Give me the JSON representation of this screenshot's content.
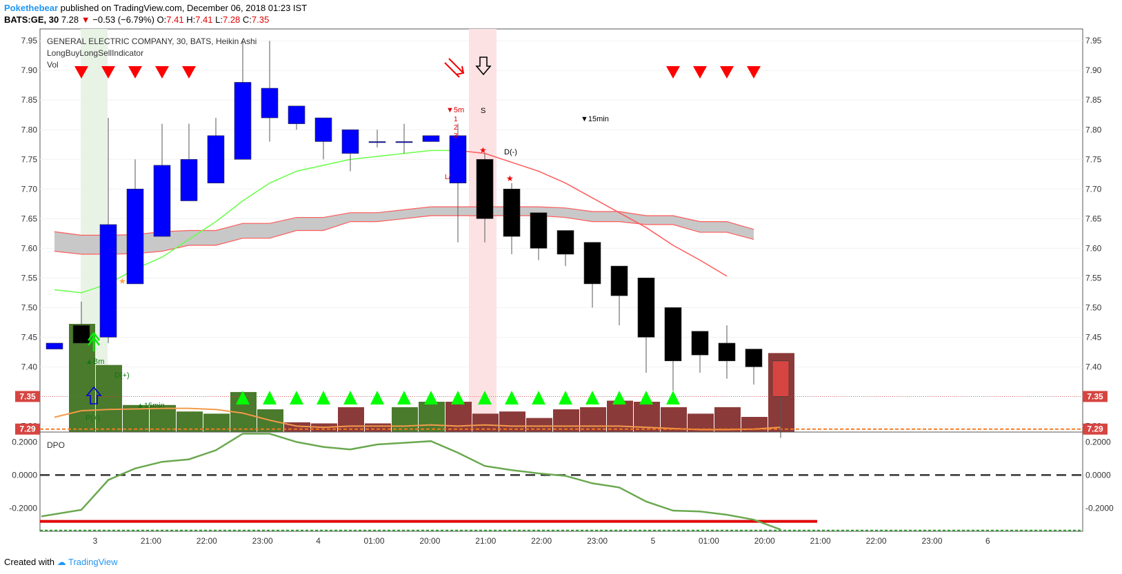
{
  "header": {
    "author": "Pokethebear",
    "published": "published on TradingView.com, December 06, 2018 01:23 IST",
    "symbol": "BATS:GE, 30",
    "last": "7.28",
    "change_arrow": "▼",
    "change": "−0.53 (−6.79%)",
    "o_label": "O:",
    "o_val": "7.41",
    "h_label": "H:",
    "h_val": "7.41",
    "l_label": "L:",
    "l_val": "7.28",
    "c_label": "C:",
    "c_val": "7.35"
  },
  "legend": {
    "title": "GENERAL ELECTRIC COMPANY, 30, BATS, Heikin Ashi",
    "indicator": "LongBuyLongSellIndicator",
    "vol": "Vol",
    "dpo": "DPO"
  },
  "footer": {
    "created": "Created with",
    "brand": "TradingView"
  },
  "colors": {
    "bull_candle": "#0000ff",
    "bear_candle": "#000000",
    "vol_green": "#4a7a2c",
    "vol_red": "#8b3a3a",
    "ema_green": "#66ff44",
    "ema_red": "#ff5a5a",
    "band_fill": "#c8c8c8",
    "dpo_line": "#6aa84f",
    "price_tag": "#d64541",
    "sell_arrow": "#ff0000",
    "buy_arrow": "#00ff00"
  },
  "chart_data": {
    "type": "candlestick",
    "price_axis": {
      "ylim": [
        7.29,
        7.97
      ],
      "ticks": [
        "7.95",
        "7.90",
        "7.85",
        "7.80",
        "7.75",
        "7.70",
        "7.65",
        "7.60",
        "7.55",
        "7.50",
        "7.45",
        "7.40",
        "7.35",
        "7.30"
      ]
    },
    "time_axis_labels": [
      "3",
      "21:00",
      "22:00",
      "23:00",
      "4",
      "01:00",
      "20:00",
      "21:00",
      "22:00",
      "23:00",
      "5",
      "01:00",
      "20:00",
      "21:00",
      "22:00",
      "23:00",
      "6"
    ],
    "candles": [
      {
        "o": 7.43,
        "h": 7.44,
        "l": 7.43,
        "c": 7.44
      },
      {
        "o": 7.47,
        "h": 7.51,
        "l": 7.44,
        "c": 7.44
      },
      {
        "o": 7.45,
        "h": 7.82,
        "l": 7.44,
        "c": 7.64
      },
      {
        "o": 7.54,
        "h": 7.75,
        "l": 7.54,
        "c": 7.7
      },
      {
        "o": 7.62,
        "h": 7.81,
        "l": 7.62,
        "c": 7.74
      },
      {
        "o": 7.68,
        "h": 7.81,
        "l": 7.68,
        "c": 7.75
      },
      {
        "o": 7.71,
        "h": 7.82,
        "l": 7.71,
        "c": 7.79
      },
      {
        "o": 7.75,
        "h": 7.95,
        "l": 7.75,
        "c": 7.88
      },
      {
        "o": 7.82,
        "h": 7.95,
        "l": 7.78,
        "c": 7.87
      },
      {
        "o": 7.81,
        "h": 7.84,
        "l": 7.8,
        "c": 7.84
      },
      {
        "o": 7.78,
        "h": 7.82,
        "l": 7.75,
        "c": 7.82
      },
      {
        "o": 7.76,
        "h": 7.8,
        "l": 7.73,
        "c": 7.8
      },
      {
        "o": 7.78,
        "h": 7.8,
        "l": 7.77,
        "c": 7.78
      },
      {
        "o": 7.78,
        "h": 7.81,
        "l": 7.76,
        "c": 7.78
      },
      {
        "o": 7.78,
        "h": 7.79,
        "l": 7.78,
        "c": 7.79
      },
      {
        "o": 7.71,
        "h": 7.81,
        "l": 7.61,
        "c": 7.79
      },
      {
        "o": 7.75,
        "h": 7.76,
        "l": 7.61,
        "c": 7.65
      },
      {
        "o": 7.7,
        "h": 7.71,
        "l": 7.59,
        "c": 7.62
      },
      {
        "o": 7.66,
        "h": 7.66,
        "l": 7.58,
        "c": 7.6
      },
      {
        "o": 7.63,
        "h": 7.63,
        "l": 7.57,
        "c": 7.59
      },
      {
        "o": 7.61,
        "h": 7.61,
        "l": 7.5,
        "c": 7.54
      },
      {
        "o": 7.57,
        "h": 7.57,
        "l": 7.47,
        "c": 7.52
      },
      {
        "o": 7.55,
        "h": 7.55,
        "l": 7.39,
        "c": 7.45
      },
      {
        "o": 7.5,
        "h": 7.5,
        "l": 7.36,
        "c": 7.41
      },
      {
        "o": 7.46,
        "h": 7.46,
        "l": 7.39,
        "c": 7.42
      },
      {
        "o": 7.44,
        "h": 7.47,
        "l": 7.38,
        "c": 7.41
      },
      {
        "o": 7.43,
        "h": 7.43,
        "l": 7.37,
        "c": 7.4
      },
      {
        "o": 7.41,
        "h": 7.41,
        "l": 7.28,
        "c": 7.35
      }
    ],
    "volume": [
      0.0,
      1.0,
      0.62,
      0.25,
      0.25,
      0.19,
      0.17,
      0.37,
      0.21,
      0.09,
      0.08,
      0.23,
      0.08,
      0.23,
      0.28,
      0.28,
      0.17,
      0.19,
      0.13,
      0.21,
      0.23,
      0.29,
      0.28,
      0.23,
      0.17,
      0.23,
      0.14,
      0.73
    ],
    "volume_colors": [
      "g",
      "g",
      "g",
      "g",
      "g",
      "g",
      "g",
      "g",
      "g",
      "r",
      "r",
      "r",
      "r",
      "g",
      "g",
      "r",
      "r",
      "r",
      "r",
      "r",
      "r",
      "r",
      "r",
      "r",
      "r",
      "r",
      "r",
      "r"
    ],
    "ema_fast": [
      7.53,
      7.525,
      7.54,
      7.565,
      7.585,
      7.615,
      7.645,
      7.68,
      7.71,
      7.73,
      7.74,
      7.75,
      7.755,
      7.76,
      7.765,
      7.765,
      7.76,
      7.745,
      7.73,
      7.71,
      7.685,
      7.66,
      7.635,
      7.605,
      7.58,
      7.553
    ],
    "ema_fast_split": 15,
    "band_upper": [
      7.628,
      7.622,
      7.622,
      7.623,
      7.628,
      7.63,
      7.63,
      7.642,
      7.642,
      7.652,
      7.652,
      7.66,
      7.66,
      7.665,
      7.67,
      7.67,
      7.67,
      7.67,
      7.67,
      7.668,
      7.662,
      7.662,
      7.655,
      7.655,
      7.645,
      7.645,
      7.632
    ],
    "band_lower": [
      7.595,
      7.59,
      7.59,
      7.591,
      7.595,
      7.605,
      7.605,
      7.617,
      7.617,
      7.63,
      7.63,
      7.645,
      7.645,
      7.65,
      7.655,
      7.655,
      7.655,
      7.655,
      7.655,
      7.652,
      7.645,
      7.645,
      7.64,
      7.64,
      7.627,
      7.627,
      7.615
    ],
    "long_ma": [
      7.315,
      7.326,
      7.328,
      7.329,
      7.33,
      7.33,
      7.328,
      7.322,
      7.31,
      7.3,
      7.298,
      7.3,
      7.3,
      7.3,
      7.302,
      7.3,
      7.302,
      7.3,
      7.3,
      7.3,
      7.3,
      7.3,
      7.298,
      7.296,
      7.294,
      7.294,
      7.295,
      7.298
    ],
    "dpo": {
      "ylim": [
        -0.34,
        0.26
      ],
      "ticks": [
        "0.2000",
        "0.0000",
        "-0.2000"
      ],
      "values": [
        -0.25,
        -0.21,
        -0.03,
        0.04,
        0.08,
        0.095,
        0.15,
        0.25,
        0.25,
        0.2,
        0.17,
        0.155,
        0.185,
        0.195,
        0.205,
        0.135,
        0.055,
        0.03,
        0.01,
        -0.005,
        -0.05,
        -0.075,
        -0.16,
        -0.215,
        -0.22,
        -0.24,
        -0.27,
        -0.33
      ],
      "red_level": -0.28,
      "dashed_level": -0.335
    },
    "price_tags": [
      "7.35",
      "7.29"
    ],
    "tag_levels": [
      7.35,
      7.295
    ],
    "sell_marker_bars": [
      1,
      2,
      3,
      4,
      5,
      23,
      24,
      25,
      26
    ],
    "buy_marker_bars": [
      7,
      8,
      9,
      10,
      11,
      12,
      13,
      14,
      15,
      16,
      17,
      18,
      19,
      20,
      21,
      22,
      23
    ],
    "annotations": {
      "buy_signal": "▲Bm",
      "d_plus": "D(+)",
      "min15_up": "▲15min",
      "p_plus": "P(+)",
      "min5_down": "▼5m",
      "counts": [
        "1",
        "2",
        "3"
      ],
      "s_label": "S",
      "d_minus": "D(-)",
      "min15_down": "▼15min",
      "bar_label": "L/"
    }
  }
}
